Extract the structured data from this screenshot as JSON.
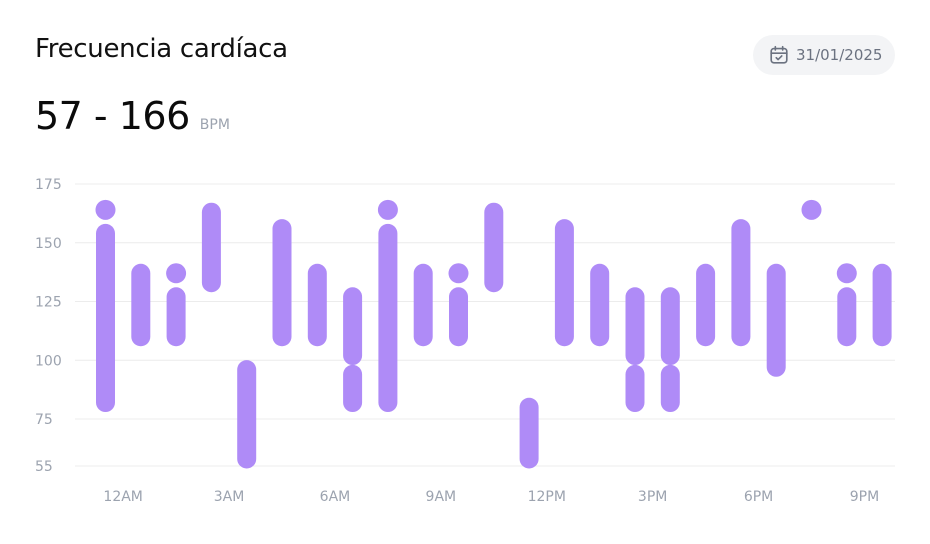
{
  "header": {
    "title": "Frecuencia cardíaca",
    "date": "31/01/2025",
    "range_value": "57 - 166",
    "range_unit": "BPM"
  },
  "colors": {
    "bar": "#af8bf7",
    "grid": "#ececec",
    "tick": "#9ca3af"
  },
  "chart_data": {
    "type": "range-bar",
    "title": "Frecuencia cardíaca",
    "unit": "BPM",
    "ylim": [
      55,
      175
    ],
    "yticks": [
      175,
      150,
      125,
      100,
      75,
      55
    ],
    "xtick_labels": [
      {
        "label": "12AM",
        "at": 0.5
      },
      {
        "label": "3AM",
        "at": 3.5
      },
      {
        "label": "6AM",
        "at": 6.5
      },
      {
        "label": "9AM",
        "at": 9.5
      },
      {
        "label": "12PM",
        "at": 12.5
      },
      {
        "label": "3PM",
        "at": 15.5
      },
      {
        "label": "6PM",
        "at": 18.5
      },
      {
        "label": "9PM",
        "at": 21.5
      }
    ],
    "slots": 23,
    "bars": [
      {
        "slot": 0,
        "segments": [
          [
            164,
            164
          ],
          [
            82,
            154
          ]
        ]
      },
      {
        "slot": 1,
        "segments": [
          [
            110,
            137
          ]
        ]
      },
      {
        "slot": 2,
        "segments": [
          [
            137,
            137
          ],
          [
            110,
            127
          ]
        ]
      },
      {
        "slot": 3,
        "segments": [
          [
            133,
            163
          ]
        ]
      },
      {
        "slot": 4,
        "segments": [
          [
            58,
            96
          ]
        ]
      },
      {
        "slot": 5,
        "segments": [
          [
            110,
            156
          ]
        ]
      },
      {
        "slot": 6,
        "segments": [
          [
            110,
            137
          ]
        ]
      },
      {
        "slot": 7,
        "segments": [
          [
            102,
            127
          ],
          [
            82,
            94
          ]
        ]
      },
      {
        "slot": 8,
        "segments": [
          [
            164,
            164
          ],
          [
            82,
            154
          ]
        ]
      },
      {
        "slot": 9,
        "segments": [
          [
            110,
            137
          ]
        ]
      },
      {
        "slot": 10,
        "segments": [
          [
            137,
            137
          ],
          [
            110,
            127
          ]
        ]
      },
      {
        "slot": 11,
        "segments": [
          [
            133,
            163
          ]
        ]
      },
      {
        "slot": 12,
        "segments": [
          [
            58,
            80
          ]
        ]
      },
      {
        "slot": 13,
        "segments": [
          [
            110,
            156
          ]
        ]
      },
      {
        "slot": 14,
        "segments": [
          [
            110,
            137
          ]
        ]
      },
      {
        "slot": 15,
        "segments": [
          [
            102,
            127
          ],
          [
            82,
            94
          ]
        ]
      },
      {
        "slot": 16,
        "segments": [
          [
            102,
            127
          ],
          [
            82,
            94
          ]
        ]
      },
      {
        "slot": 17,
        "segments": [
          [
            110,
            137
          ]
        ]
      },
      {
        "slot": 18,
        "segments": [
          [
            110,
            156
          ]
        ]
      },
      {
        "slot": 19,
        "segments": [
          [
            97,
            137
          ]
        ]
      },
      {
        "slot": 20,
        "segments": [
          [
            164,
            164
          ]
        ]
      },
      {
        "slot": 21,
        "segments": [
          [
            137,
            137
          ],
          [
            110,
            127
          ]
        ]
      },
      {
        "slot": 22,
        "segments": [
          [
            110,
            137
          ]
        ]
      }
    ]
  }
}
